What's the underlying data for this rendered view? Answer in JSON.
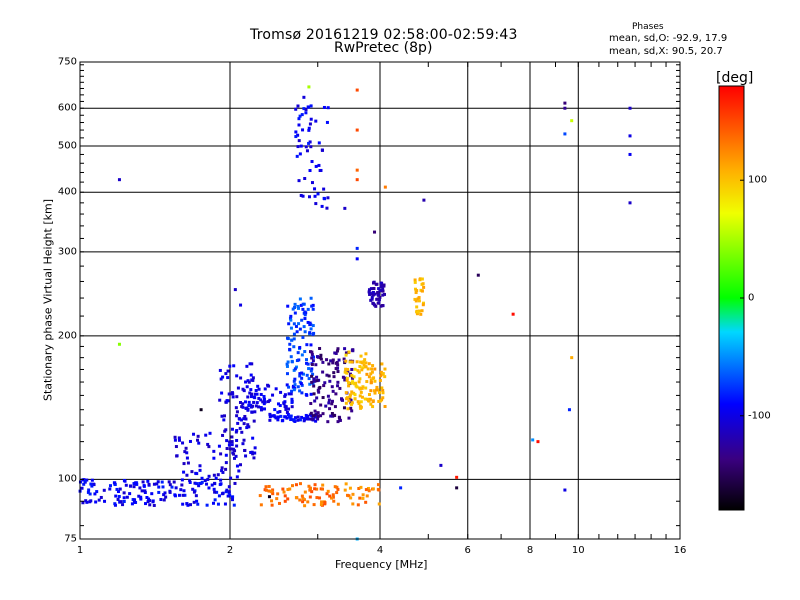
{
  "chart_data": {
    "type": "scatter",
    "title": "Tromsø 20161219 02:58:00-02:59:43",
    "subtitle": "RwPretec (8p)",
    "stats": {
      "heading": "Phases",
      "o_mode": "mean, sd,O: -92.9, 17.9",
      "x_mode": "mean, sd,X:  90.5, 20.7"
    },
    "xlabel": "Frequency [MHz]",
    "ylabel": "Stationary phase Virtual Height [km]",
    "x_scale": "log",
    "y_scale": "log",
    "xlim": [
      1,
      16
    ],
    "ylim": [
      75,
      750
    ],
    "xticks": [
      {
        "v": 1,
        "label": "1"
      },
      {
        "v": 2,
        "label": "2"
      },
      {
        "v": 4,
        "label": "4"
      },
      {
        "v": 6,
        "label": "6"
      },
      {
        "v": 8,
        "label": "8"
      },
      {
        "v": 10,
        "label": "10"
      },
      {
        "v": 16,
        "label": "16"
      }
    ],
    "yticks": [
      {
        "v": 75,
        "label": "75"
      },
      {
        "v": 100,
        "label": "100"
      },
      {
        "v": 200,
        "label": "200"
      },
      {
        "v": 300,
        "label": "300"
      },
      {
        "v": 400,
        "label": "400"
      },
      {
        "v": 500,
        "label": "500"
      },
      {
        "v": 600,
        "label": "600"
      },
      {
        "v": 750,
        "label": "750"
      }
    ],
    "grid_x": [
      2,
      4,
      6,
      8,
      10
    ],
    "grid_y": [
      100,
      200,
      300,
      400,
      500,
      600
    ],
    "colorbar": {
      "unit": "[deg]",
      "range": [
        -180,
        180
      ],
      "ticks": [
        {
          "v": 100,
          "label": "100"
        },
        {
          "v": 0,
          "label": "0"
        },
        {
          "v": -100,
          "label": "-100"
        }
      ]
    },
    "clusters": [
      {
        "f": [
          1.0,
          2.05
        ],
        "h": [
          88,
          100
        ],
        "phase": [
          -110,
          -80
        ],
        "n": 170
      },
      {
        "f": [
          1.55,
          2.1
        ],
        "h": [
          100,
          125
        ],
        "phase": [
          -115,
          -90
        ],
        "n": 60
      },
      {
        "f": [
          1.9,
          2.25
        ],
        "h": [
          110,
          175
        ],
        "phase": [
          -115,
          -90
        ],
        "n": 90
      },
      {
        "f": [
          2.1,
          2.7
        ],
        "h": [
          138,
          158
        ],
        "phase": [
          -110,
          -85
        ],
        "n": 70
      },
      {
        "f": [
          2.4,
          3.0
        ],
        "h": [
          132,
          137
        ],
        "phase": [
          -105,
          -80
        ],
        "n": 50
      },
      {
        "f": [
          2.6,
          2.95
        ],
        "h": [
          150,
          240
        ],
        "phase": [
          -90,
          -55
        ],
        "n": 110
      },
      {
        "f": [
          2.9,
          3.55
        ],
        "h": [
          132,
          190
        ],
        "phase": [
          -150,
          -120
        ],
        "n": 130
      },
      {
        "f": [
          3.4,
          3.75
        ],
        "h": [
          140,
          185
        ],
        "phase": [
          90,
          110
        ],
        "n": 70
      },
      {
        "f": [
          3.75,
          4.1
        ],
        "h": [
          142,
          175
        ],
        "phase": [
          100,
          120
        ],
        "n": 50
      },
      {
        "f": [
          4.7,
          4.9
        ],
        "h": [
          220,
          265
        ],
        "phase": [
          95,
          115
        ],
        "n": 30
      },
      {
        "f": [
          3.8,
          4.1
        ],
        "h": [
          230,
          260
        ],
        "phase": [
          -130,
          -110
        ],
        "n": 50
      },
      {
        "f": [
          2.7,
          3.15
        ],
        "h": [
          370,
          640
        ],
        "phase": [
          -110,
          -80
        ],
        "n": 60
      },
      {
        "f": [
          2.3,
          3.3
        ],
        "h": [
          88,
          98
        ],
        "phase": [
          120,
          150
        ],
        "n": 70
      },
      {
        "f": [
          3.4,
          4.0
        ],
        "h": [
          88,
          98
        ],
        "phase": [
          110,
          145
        ],
        "n": 25
      }
    ],
    "points": [
      {
        "f": 1.2,
        "h": 425,
        "phase": -110
      },
      {
        "f": 1.2,
        "h": 192,
        "phase": 40
      },
      {
        "f": 3.6,
        "h": 655,
        "phase": 150
      },
      {
        "f": 2.88,
        "h": 665,
        "phase": 50
      },
      {
        "f": 3.6,
        "h": 540,
        "phase": 150
      },
      {
        "f": 3.6,
        "h": 445,
        "phase": 140
      },
      {
        "f": 3.6,
        "h": 425,
        "phase": 150
      },
      {
        "f": 4.1,
        "h": 410,
        "phase": 130
      },
      {
        "f": 3.4,
        "h": 370,
        "phase": -110
      },
      {
        "f": 3.9,
        "h": 330,
        "phase": -140
      },
      {
        "f": 4.9,
        "h": 385,
        "phase": -120
      },
      {
        "f": 3.6,
        "h": 305,
        "phase": -80
      },
      {
        "f": 3.6,
        "h": 290,
        "phase": -90
      },
      {
        "f": 6.3,
        "h": 268,
        "phase": -150
      },
      {
        "f": 7.4,
        "h": 222,
        "phase": 175
      },
      {
        "f": 9.4,
        "h": 615,
        "phase": -140
      },
      {
        "f": 9.4,
        "h": 600,
        "phase": -130
      },
      {
        "f": 9.4,
        "h": 530,
        "phase": -70
      },
      {
        "f": 9.7,
        "h": 565,
        "phase": 60
      },
      {
        "f": 12.7,
        "h": 600,
        "phase": -110
      },
      {
        "f": 12.7,
        "h": 525,
        "phase": -100
      },
      {
        "f": 12.7,
        "h": 480,
        "phase": -95
      },
      {
        "f": 12.7,
        "h": 380,
        "phase": -110
      },
      {
        "f": 9.7,
        "h": 180,
        "phase": 110
      },
      {
        "f": 9.6,
        "h": 140,
        "phase": -80
      },
      {
        "f": 8.3,
        "h": 120,
        "phase": 175
      },
      {
        "f": 8.1,
        "h": 121,
        "phase": -50
      },
      {
        "f": 9.4,
        "h": 95,
        "phase": -100
      },
      {
        "f": 5.3,
        "h": 107,
        "phase": -110
      },
      {
        "f": 5.7,
        "h": 101,
        "phase": 170
      },
      {
        "f": 5.7,
        "h": 96,
        "phase": -160
      },
      {
        "f": 4.4,
        "h": 96,
        "phase": -80
      },
      {
        "f": 2.4,
        "h": 92,
        "phase": -170
      },
      {
        "f": 1.75,
        "h": 140,
        "phase": -170
      },
      {
        "f": 2.05,
        "h": 250,
        "phase": -110
      },
      {
        "f": 2.1,
        "h": 232,
        "phase": -100
      },
      {
        "f": 3.6,
        "h": 75,
        "phase": -40
      }
    ]
  }
}
